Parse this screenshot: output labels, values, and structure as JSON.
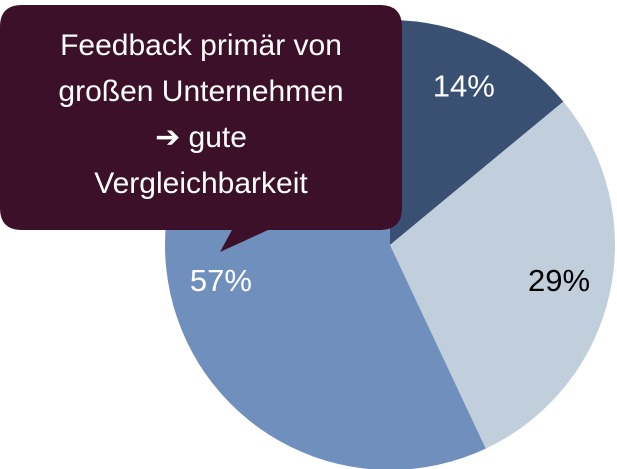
{
  "chart_data": {
    "type": "pie",
    "values": [
      14,
      29,
      57
    ],
    "value_labels": [
      "14%",
      "29%",
      "57%"
    ],
    "colors": [
      "#3a5072",
      "#c1cedb",
      "#6f8fbc"
    ],
    "label_colors": [
      "#ffffff",
      "#000000",
      "#ffffff"
    ],
    "annotation": [
      "Feedback primär von",
      "großen Unternehmen",
      "➔ gute",
      "Vergleichbarkeit"
    ]
  }
}
